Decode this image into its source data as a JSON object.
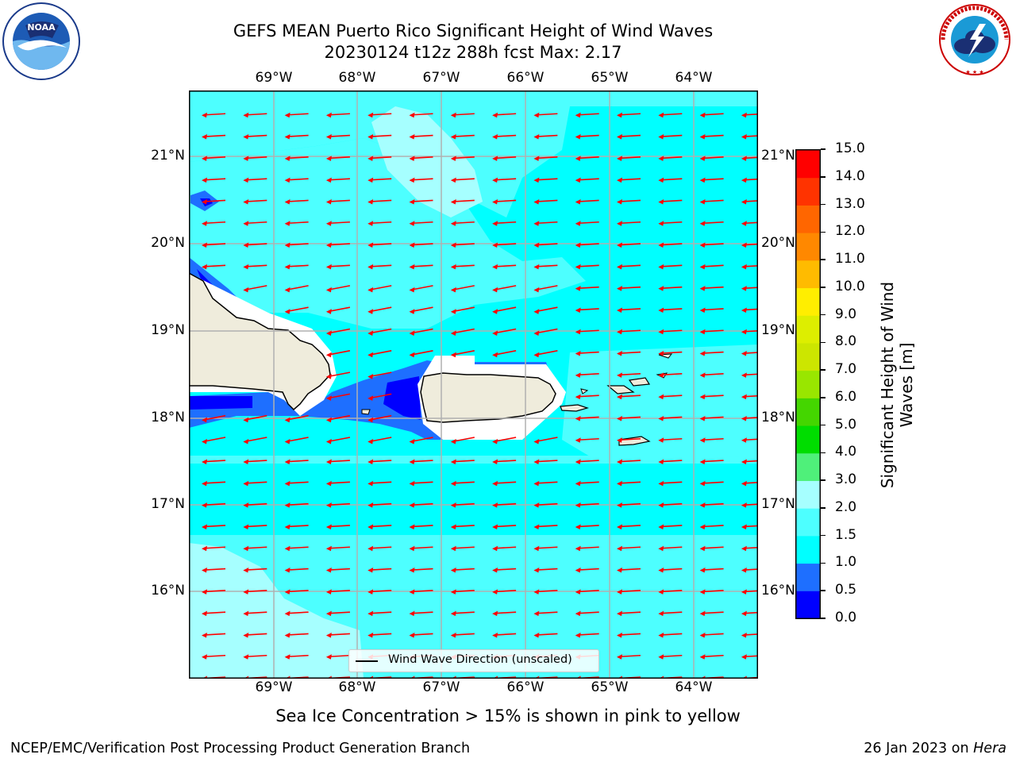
{
  "title_line1": "GEFS MEAN Puerto Rico Significant Height of Wind Waves",
  "title_line2": "20230124 t12z 288h fcst   Max: 2.17",
  "logos": {
    "left": "NOAA",
    "right": "NATIONAL WEATHER SERVICE"
  },
  "longitude_labels": [
    "69°W",
    "68°W",
    "67°W",
    "66°W",
    "65°W",
    "64°W"
  ],
  "latitude_labels": [
    "21°N",
    "20°N",
    "19°N",
    "18°N",
    "17°N",
    "16°N"
  ],
  "colorbar": {
    "label": "Significant Height of Wind Waves [m]",
    "ticks": [
      "0.0",
      "0.5",
      "1.0",
      "1.5",
      "2.0",
      "3.0",
      "4.0",
      "5.0",
      "6.0",
      "7.0",
      "8.0",
      "9.0",
      "10.0",
      "11.0",
      "12.0",
      "13.0",
      "14.0",
      "15.0"
    ],
    "colors": [
      "#0000ff",
      "#1e6fff",
      "#00ffff",
      "#4dffff",
      "#a6ffff",
      "#4ff07a",
      "#00dd00",
      "#44d600",
      "#99e600",
      "#cce600",
      "#ddee00",
      "#ffee00",
      "#ffbb00",
      "#ff8800",
      "#ff6600",
      "#ff3300",
      "#ff0000"
    ]
  },
  "legend_text": "Wind Wave Direction (unscaled)",
  "subtitle": "Sea Ice Concentration > 15% is shown in pink to yellow",
  "footer_left": "NCEP/EMC/Verification Post Processing Product Generation Branch",
  "footer_date": "26 Jan 2023 on",
  "footer_host": "Hera",
  "colors": {
    "land": "#efecdc",
    "arrow": "#ff0000",
    "grid": "#b0b0b0",
    "sea_base": "#00ffff",
    "sea_light": "#4dffff",
    "sea_lighter": "#a6ffff",
    "sea_mid": "#1e6fff",
    "sea_dark": "#0000ff"
  }
}
